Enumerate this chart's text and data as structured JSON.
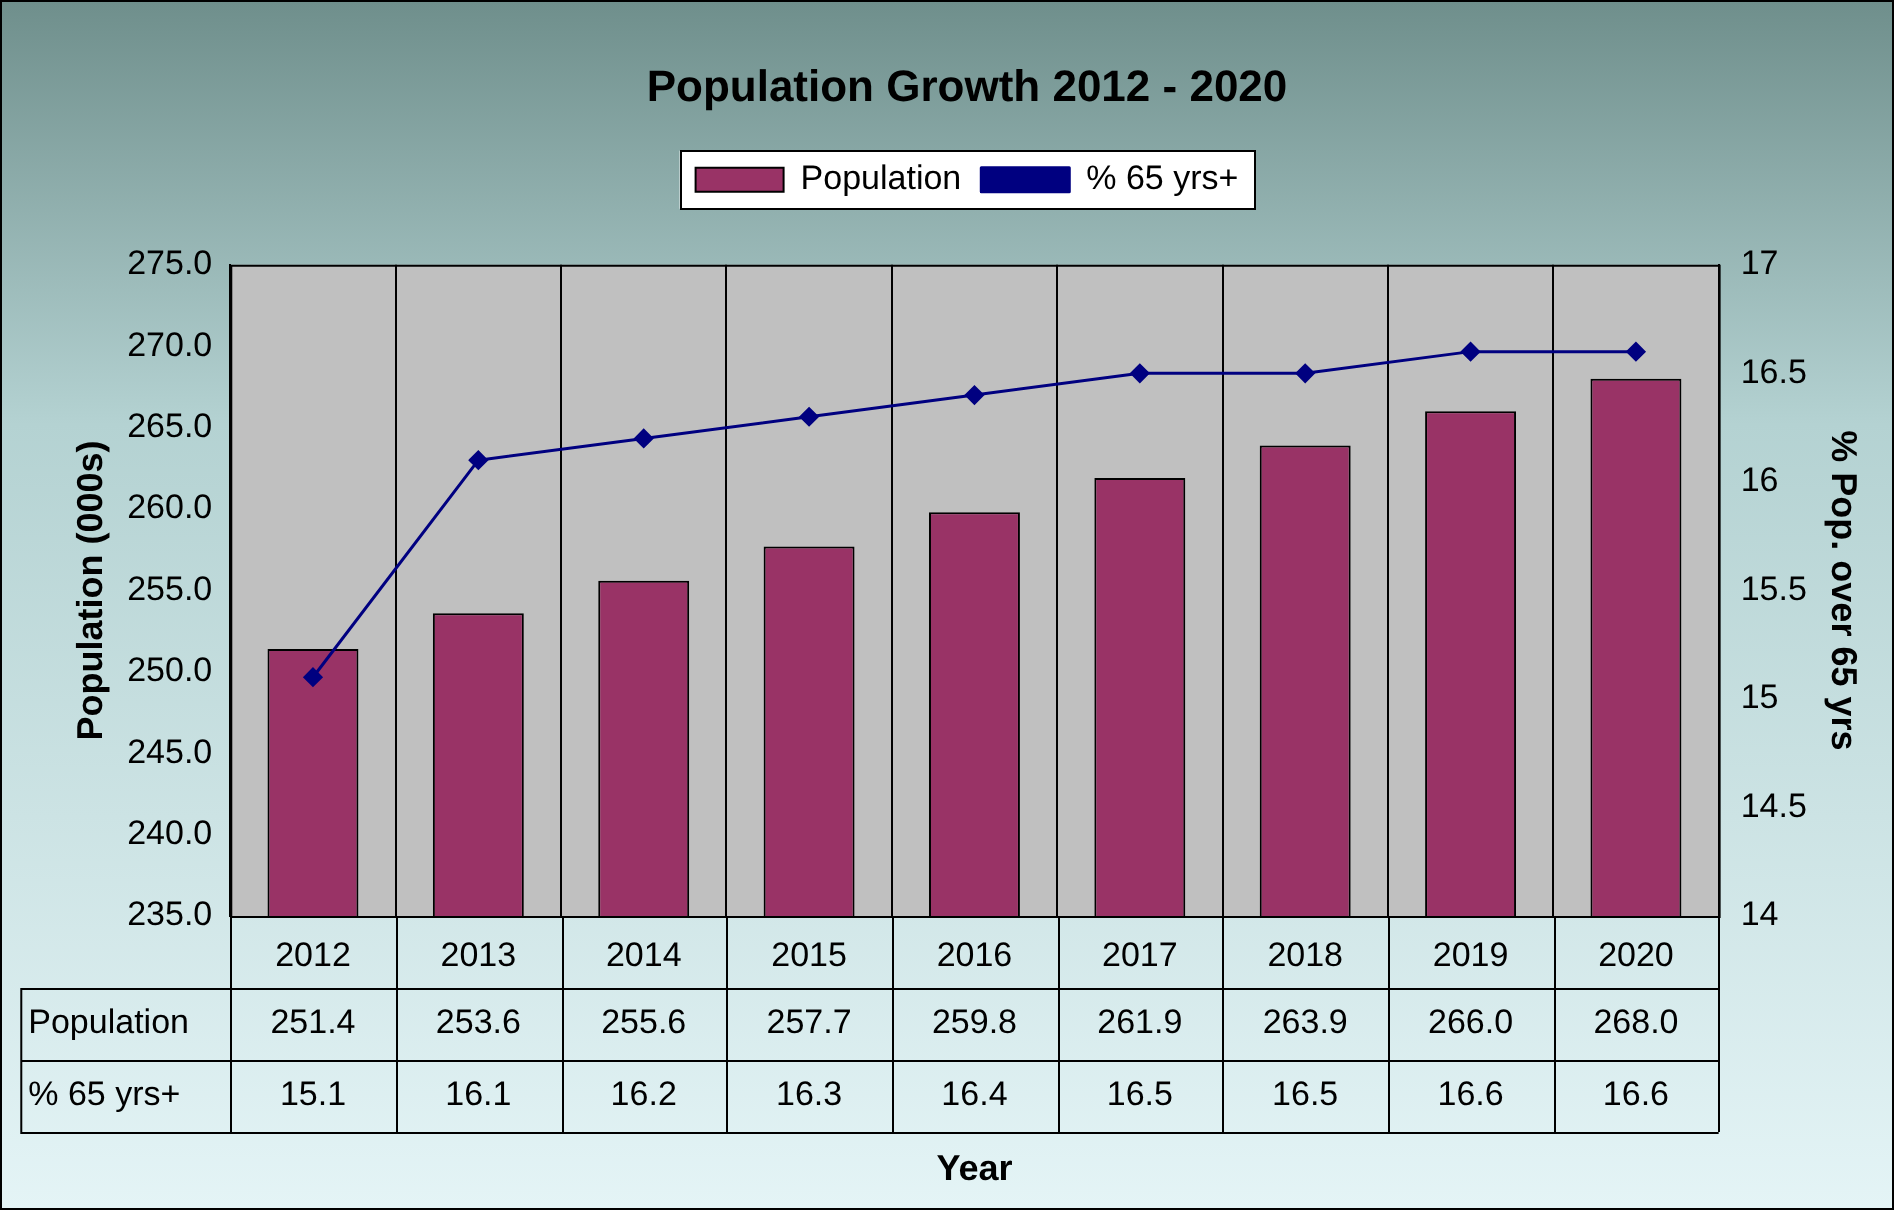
{
  "chart_data": {
    "type": "bar",
    "title": "Population Growth 2012 - 2020",
    "xlabel": "Year",
    "ylabel": "Population (000s)",
    "y2label": "% Pop. over 65 yrs",
    "categories": [
      "2012",
      "2013",
      "2014",
      "2015",
      "2016",
      "2017",
      "2018",
      "2019",
      "2020"
    ],
    "series": [
      {
        "name": "Population",
        "color": "#993366",
        "values": [
          251.4,
          253.6,
          255.6,
          257.7,
          259.8,
          261.9,
          263.9,
          266.0,
          268.0
        ],
        "value_labels": [
          "251.4",
          "253.6",
          "255.6",
          "257.7",
          "259.8",
          "261.9",
          "263.9",
          "266.0",
          "268.0"
        ]
      },
      {
        "name": "% 65 yrs+",
        "type": "line",
        "axis": "y2",
        "color": "#000080",
        "marker": "diamond",
        "values": [
          15.1,
          16.1,
          16.2,
          16.3,
          16.4,
          16.5,
          16.5,
          16.6,
          16.6
        ],
        "value_labels": [
          "15.1",
          "16.1",
          "16.2",
          "16.3",
          "16.4",
          "16.5",
          "16.5",
          "16.6",
          "16.6"
        ]
      }
    ],
    "ylim": [
      235,
      275
    ],
    "yticks": [
      {
        "value": 235,
        "label": "235.0"
      },
      {
        "value": 240,
        "label": "240.0"
      },
      {
        "value": 245,
        "label": "245.0"
      },
      {
        "value": 250,
        "label": "250.0"
      },
      {
        "value": 255,
        "label": "255.0"
      },
      {
        "value": 260,
        "label": "260.0"
      },
      {
        "value": 265,
        "label": "265.0"
      },
      {
        "value": 270,
        "label": "270.0"
      },
      {
        "value": 275,
        "label": "275.0"
      }
    ],
    "y2lim": [
      14,
      17
    ],
    "y2ticks": [
      14,
      14.5,
      15,
      15.5,
      16,
      16.5,
      17
    ],
    "grid": "x",
    "legend": "top"
  }
}
